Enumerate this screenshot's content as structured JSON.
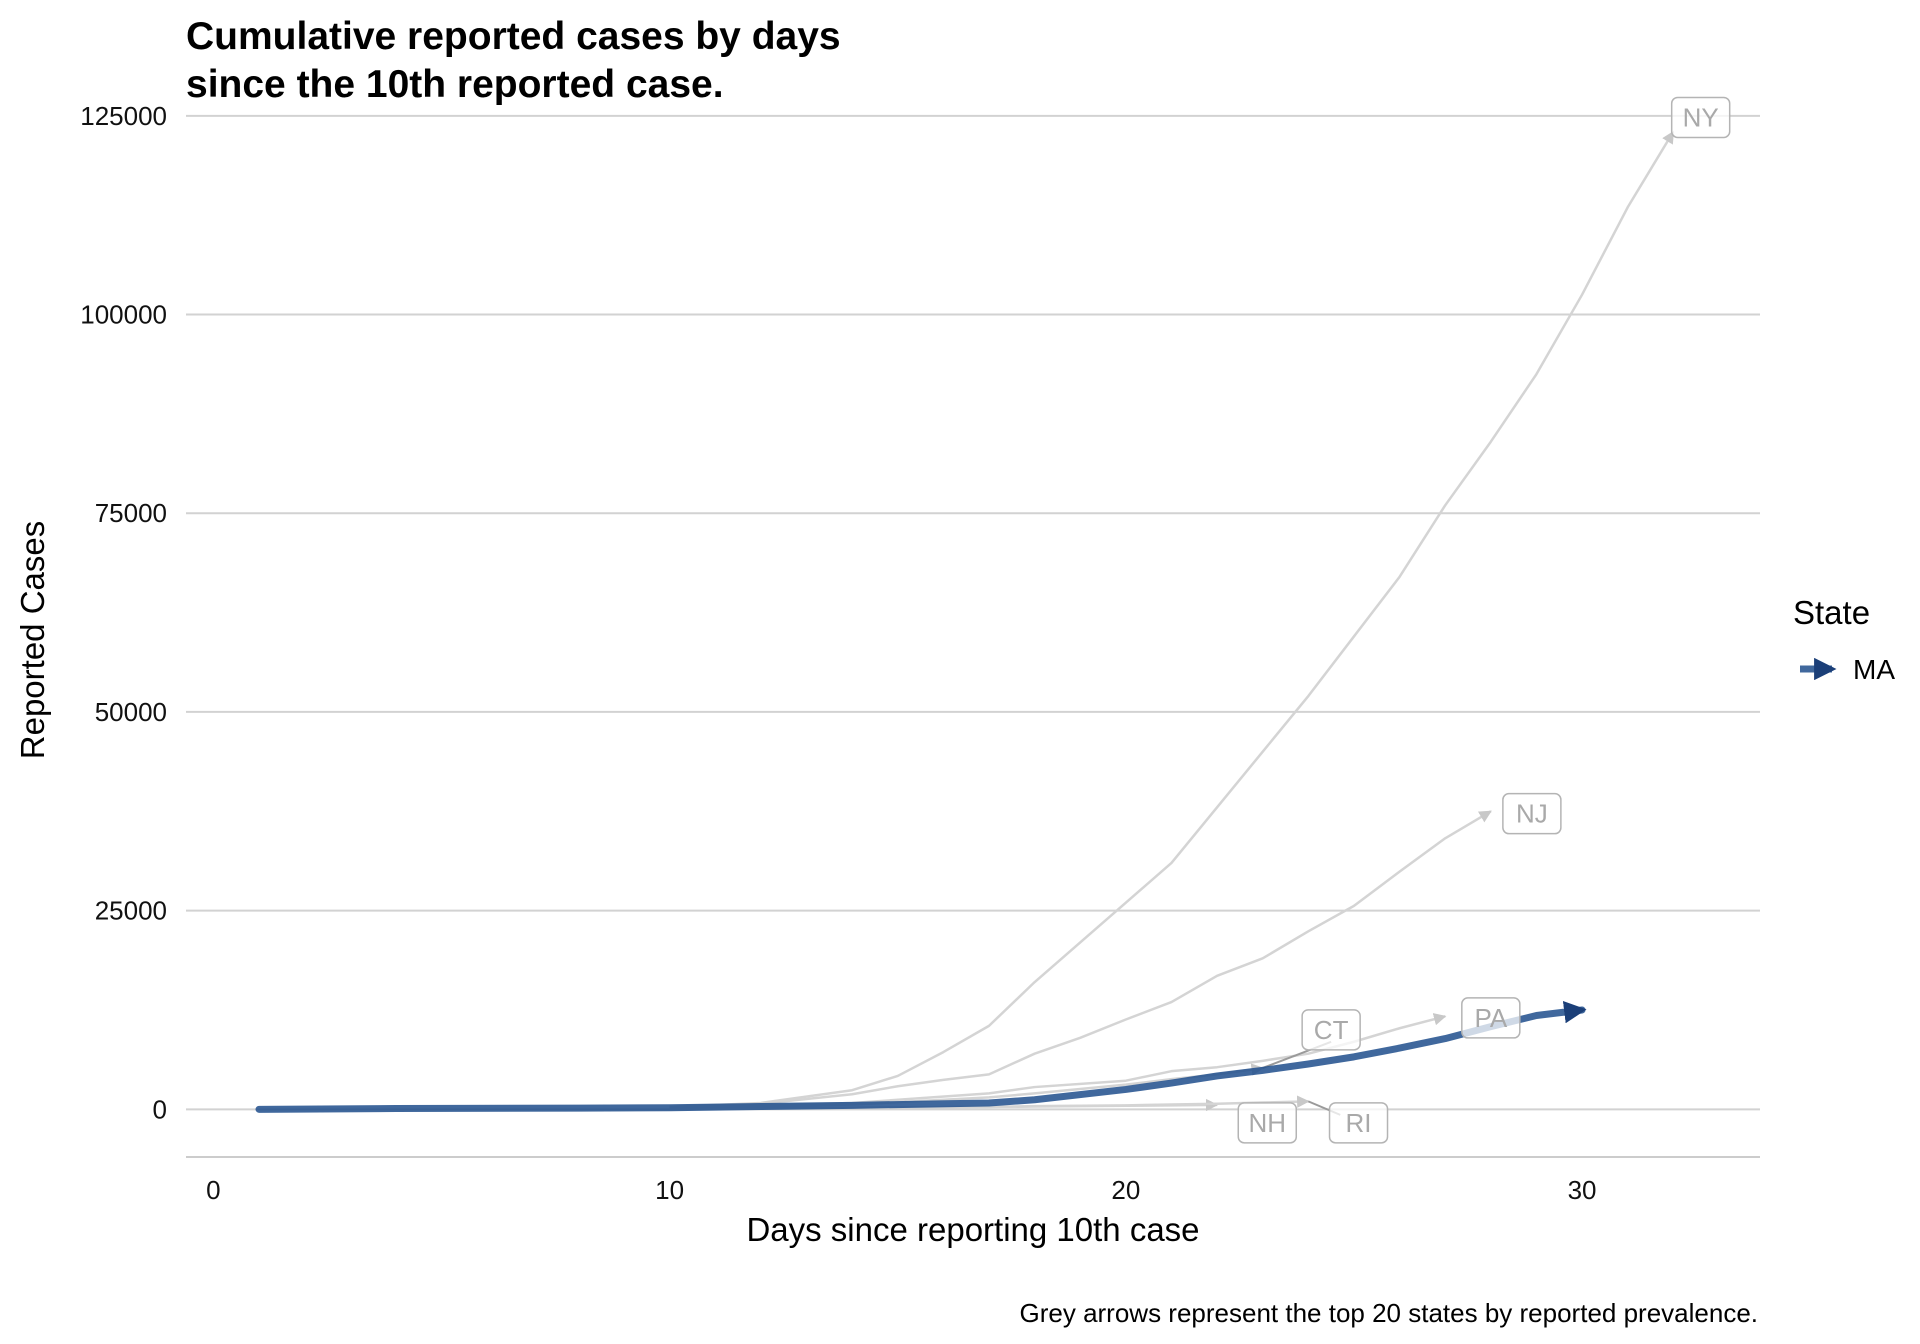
{
  "chart_data": {
    "type": "line",
    "title_lines": [
      "Cumulative reported cases by days",
      "since the 10th reported case."
    ],
    "xlabel": "Days since reporting 10th case",
    "ylabel": "Reported Cases",
    "caption": "Grey arrows represent the top 20 states by reported prevalence.",
    "xlim": [
      -0.6,
      33.9
    ],
    "ylim": [
      -6000,
      127500
    ],
    "xticks": [
      0,
      10,
      20,
      30
    ],
    "yticks": [
      0,
      25000,
      50000,
      75000,
      100000,
      125000
    ],
    "grid": "horizontal",
    "legend": {
      "title": "State",
      "position": "right",
      "entries": [
        {
          "label": "MA",
          "color": "#1f4e8c"
        }
      ]
    },
    "highlight": {
      "name": "MA",
      "color": "#1f4e8c",
      "x": [
        1,
        4,
        8,
        10,
        12,
        14,
        17,
        18,
        20,
        21,
        22,
        23,
        24,
        25,
        26,
        27,
        28,
        29,
        30
      ],
      "y": [
        0,
        100,
        150,
        200,
        350,
        500,
        800,
        1200,
        2500,
        3300,
        4200,
        4900,
        5700,
        6600,
        7700,
        8900,
        10400,
        11800,
        12500
      ]
    },
    "series": [
      {
        "label": "NY",
        "x": [
          10,
          12,
          14,
          15,
          16,
          17,
          18,
          19,
          20,
          21,
          22,
          23,
          24,
          25,
          26,
          27,
          28,
          29,
          30,
          31,
          32
        ],
        "y": [
          300,
          800,
          2400,
          4200,
          7200,
          10500,
          16000,
          21000,
          26000,
          31000,
          38000,
          45000,
          52000,
          59500,
          67000,
          76000,
          84000,
          92500,
          102500,
          113500,
          123000
        ]
      },
      {
        "label": "NJ",
        "x": [
          10,
          12,
          14,
          15,
          16,
          17,
          18,
          19,
          20,
          21,
          22,
          23,
          24,
          25,
          26,
          27,
          28
        ],
        "y": [
          300,
          700,
          1900,
          2900,
          3700,
          4400,
          7000,
          9000,
          11300,
          13500,
          16800,
          19000,
          22400,
          25600,
          29900,
          34100,
          37500
        ]
      },
      {
        "label": "PA",
        "x": [
          10,
          14,
          17,
          18,
          20,
          21,
          22,
          23,
          24,
          25,
          26,
          27
        ],
        "y": [
          200,
          800,
          2000,
          2800,
          3600,
          4800,
          5300,
          6100,
          7000,
          8500,
          10200,
          11700
        ]
      },
      {
        "label": "CT",
        "x": [
          10,
          14,
          17,
          18,
          20,
          21,
          22,
          23
        ],
        "y": [
          200,
          600,
          1500,
          2000,
          3100,
          3800,
          4400,
          5200
        ]
      },
      {
        "label": "NH",
        "x": [
          10,
          14,
          17,
          18,
          19,
          20,
          21,
          22
        ],
        "y": [
          100,
          200,
          300,
          350,
          400,
          450,
          500,
          560
        ]
      },
      {
        "label": "RI",
        "x": [
          10,
          14,
          17,
          18,
          19,
          20,
          21,
          22,
          23,
          24
        ],
        "y": [
          100,
          200,
          300,
          400,
          450,
          500,
          600,
          700,
          850,
          1000
        ]
      }
    ],
    "labels": [
      {
        "text": "NY",
        "x": 32.6,
        "y": 124800
      },
      {
        "text": "NJ",
        "x": 28.9,
        "y": 37200
      },
      {
        "text": "PA",
        "x": 28.0,
        "y": 11500
      },
      {
        "text": "CT",
        "x": 24.5,
        "y": 10000
      },
      {
        "text": "NH",
        "x": 23.1,
        "y": -1700
      },
      {
        "text": "RI",
        "x": 25.1,
        "y": -1700
      }
    ],
    "label_links": [
      {
        "from": [
          23.0,
          5200
        ],
        "to": [
          24.5,
          8500
        ]
      },
      {
        "from": [
          24.0,
          1000
        ],
        "to": [
          24.7,
          -700
        ]
      }
    ]
  }
}
